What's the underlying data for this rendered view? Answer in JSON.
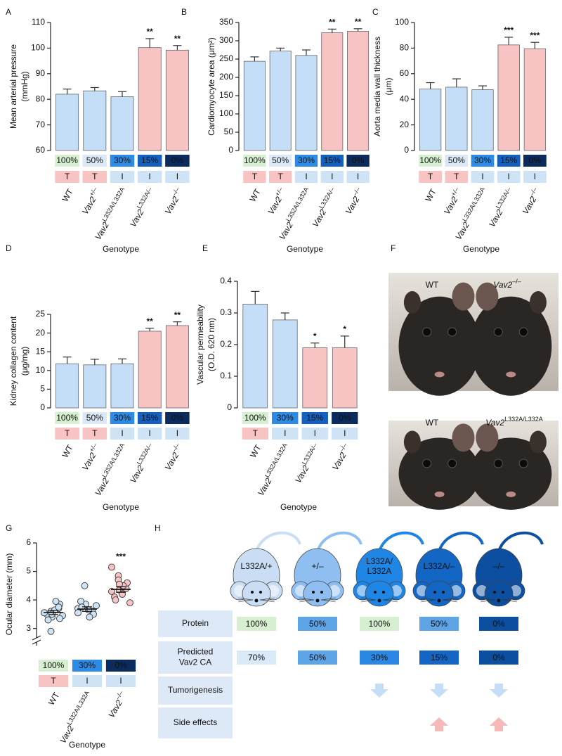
{
  "chart_data": [
    {
      "panel": "A",
      "type": "bar",
      "ylabel": [
        "Mean arterial pressure",
        "(mmHg)"
      ],
      "xlabel": "Genotype",
      "categories": [
        "WT",
        "Vav2+/–",
        "Vav2L332A/L332A",
        "Vav2L332A/–",
        "Vav2–/–"
      ],
      "values": [
        82,
        83.3,
        81,
        100.2,
        99.2
      ],
      "errors": [
        2,
        1.3,
        2,
        3.5,
        1.8
      ],
      "colors": [
        "#c5def7",
        "#c5def7",
        "#c5def7",
        "#f7c3c3",
        "#f7c3c3"
      ],
      "significance": [
        null,
        null,
        null,
        "**",
        "**"
      ],
      "ca_labels": [
        "100%",
        "50%",
        "30%",
        "15%",
        "0%"
      ],
      "ca_colors": [
        "#d6efd0",
        "#dbe9f7",
        "#2d8be6",
        "#155fbf",
        "#0b2b5c"
      ],
      "ti_labels": [
        "T",
        "T",
        "I",
        "I",
        "I"
      ],
      "ti_colors": [
        "#f7c3c3",
        "#f7c3c3",
        "#cfe3f7",
        "#cfe3f7",
        "#cfe3f7"
      ],
      "ylim": [
        60,
        110
      ],
      "yticks": [
        60,
        70,
        80,
        90,
        100,
        110
      ]
    },
    {
      "panel": "B",
      "type": "bar",
      "ylabel": [
        "Cardiomyocyte area (μm²)"
      ],
      "xlabel": "Genotype",
      "categories": [
        "WT",
        "Vav2+/–",
        "Vav2L332A/L332A",
        "Vav2L332A/–",
        "Vav2–/–"
      ],
      "values": [
        244,
        272,
        260,
        322,
        326
      ],
      "errors": [
        12,
        8,
        15,
        10,
        7
      ],
      "colors": [
        "#c5def7",
        "#c5def7",
        "#c5def7",
        "#f7c3c3",
        "#f7c3c3"
      ],
      "significance": [
        null,
        null,
        null,
        "**",
        "**"
      ],
      "ca_labels": [
        "100%",
        "50%",
        "30%",
        "15%",
        "0%"
      ],
      "ca_colors": [
        "#d6efd0",
        "#dbe9f7",
        "#2d8be6",
        "#155fbf",
        "#0b2b5c"
      ],
      "ti_labels": [
        "T",
        "T",
        "I",
        "I",
        "I"
      ],
      "ti_colors": [
        "#f7c3c3",
        "#f7c3c3",
        "#cfe3f7",
        "#cfe3f7",
        "#cfe3f7"
      ],
      "ylim": [
        0,
        350
      ],
      "yticks": [
        0,
        50,
        100,
        150,
        200,
        250,
        300,
        350
      ]
    },
    {
      "panel": "C",
      "type": "bar",
      "ylabel": [
        "Aorta media wall thickness",
        "(μm)"
      ],
      "xlabel": "Genotype",
      "categories": [
        "WT",
        "Vav2+/–",
        "Vav2L332A/L332A",
        "Vav2L332A/–",
        "Vav2–/–"
      ],
      "values": [
        48,
        49.5,
        47.5,
        82.5,
        79.5
      ],
      "errors": [
        5,
        6.5,
        3,
        6,
        5
      ],
      "colors": [
        "#c5def7",
        "#c5def7",
        "#c5def7",
        "#f7c3c3",
        "#f7c3c3"
      ],
      "significance": [
        null,
        null,
        null,
        "***",
        "***"
      ],
      "ca_labels": [
        "100%",
        "50%",
        "30%",
        "15%",
        "0%"
      ],
      "ca_colors": [
        "#d6efd0",
        "#dbe9f7",
        "#2d8be6",
        "#155fbf",
        "#0b2b5c"
      ],
      "ti_labels": [
        "T",
        "T",
        "I",
        "I",
        "I"
      ],
      "ti_colors": [
        "#f7c3c3",
        "#f7c3c3",
        "#cfe3f7",
        "#cfe3f7",
        "#cfe3f7"
      ],
      "ylim": [
        0,
        100
      ],
      "yticks": [
        0,
        20,
        40,
        60,
        80,
        100
      ]
    },
    {
      "panel": "D",
      "type": "bar",
      "ylabel": [
        "Kidney collagen content",
        "(μg/mg)"
      ],
      "xlabel": "Genotype",
      "categories": [
        "WT",
        "Vav2+/–",
        "Vav2L332A/L332A",
        "Vav2L332A/–",
        "Vav2–/–"
      ],
      "values": [
        11.8,
        11.5,
        11.8,
        20.5,
        22
      ],
      "errors": [
        1.8,
        1.5,
        1.3,
        0.8,
        1.0
      ],
      "colors": [
        "#c5def7",
        "#c5def7",
        "#c5def7",
        "#f7c3c3",
        "#f7c3c3"
      ],
      "significance": [
        null,
        null,
        null,
        "**",
        "**"
      ],
      "ca_labels": [
        "100%",
        "50%",
        "30%",
        "15%",
        "0%"
      ],
      "ca_colors": [
        "#d6efd0",
        "#dbe9f7",
        "#2d8be6",
        "#155fbf",
        "#0b2b5c"
      ],
      "ti_labels": [
        "T",
        "T",
        "I",
        "I",
        "I"
      ],
      "ti_colors": [
        "#f7c3c3",
        "#f7c3c3",
        "#cfe3f7",
        "#cfe3f7",
        "#cfe3f7"
      ],
      "ylim": [
        0,
        25
      ],
      "yticks": [
        0,
        5,
        10,
        15,
        20,
        25
      ]
    },
    {
      "panel": "E",
      "type": "bar",
      "ylabel": [
        "Vascular permeability",
        "(O.D. 620 nm)"
      ],
      "xlabel": "Genotype",
      "categories": [
        "WT",
        "Vav2L332A/L332A",
        "Vav2L332A/–",
        "Vav2–/–"
      ],
      "values": [
        0.328,
        0.278,
        0.19,
        0.19
      ],
      "errors": [
        0.04,
        0.022,
        0.015,
        0.037
      ],
      "colors": [
        "#c5def7",
        "#c5def7",
        "#f7c3c3",
        "#f7c3c3"
      ],
      "significance": [
        null,
        null,
        "*",
        "*"
      ],
      "ca_labels": [
        "100%",
        "30%",
        "15%",
        "0%"
      ],
      "ca_colors": [
        "#d6efd0",
        "#2d8be6",
        "#155fbf",
        "#0b2b5c"
      ],
      "ti_labels": [
        "T",
        "I",
        "I",
        "I"
      ],
      "ti_colors": [
        "#f7c3c3",
        "#cfe3f7",
        "#cfe3f7",
        "#cfe3f7"
      ],
      "ylim": [
        0,
        0.4
      ],
      "yticks": [
        0,
        0.1,
        0.2,
        0.3,
        0.4
      ]
    },
    {
      "panel": "G",
      "type": "dot",
      "ylabel": [
        "Ocular diameter (mm)"
      ],
      "xlabel": "Genotype",
      "categories": [
        "WT",
        "Vav2L332A/L332A",
        "Vav2–/–"
      ],
      "values": [
        [
          3.55,
          3.6,
          3.4,
          3.7,
          3.85,
          3.5,
          3.3,
          3.65,
          3.95,
          3.45,
          3.55,
          2.9,
          3.5,
          3.75,
          3.35
        ],
        [
          3.7,
          4.5,
          3.85,
          3.6,
          3.5,
          3.95,
          3.75,
          3.65,
          3.4,
          3.8,
          3.55
        ],
        [
          5.15,
          4.85,
          4.35,
          4.4,
          4.6,
          4.1,
          4.0,
          4.2,
          4.5,
          3.9,
          4.3,
          4.7,
          4.55
        ]
      ],
      "means": [
        3.56,
        3.68,
        4.37
      ],
      "errors": [
        0.07,
        0.08,
        0.1
      ],
      "colors": [
        "#cfe3f7",
        "#cfe3f7",
        "#f7c3c3"
      ],
      "significance": [
        null,
        null,
        "***"
      ],
      "ca_labels": [
        "100%",
        "30%",
        "0%"
      ],
      "ca_colors": [
        "#d6efd0",
        "#2d8be6",
        "#0b2b5c"
      ],
      "ti_labels": [
        "T",
        "I",
        "I"
      ],
      "ti_colors": [
        "#f7c3c3",
        "#cfe3f7",
        "#cfe3f7"
      ],
      "ylim": [
        2.4,
        6
      ],
      "yticks": [
        3,
        4,
        5,
        6
      ]
    }
  ],
  "photos": {
    "panel": "F",
    "labels": [
      "WT",
      "Vav2–/–",
      "WT",
      "Vav2L332A/L332A"
    ]
  },
  "diagram": {
    "panel": "H",
    "genotypes": [
      [
        "L332A/+"
      ],
      [
        "+/–"
      ],
      [
        "L332A/",
        "L332A"
      ],
      [
        "L332A/–"
      ],
      [
        "–/–"
      ]
    ],
    "colors": [
      "#c9def4",
      "#8fbff0",
      "#1f86e6",
      "#1466c4",
      "#0c4fa0"
    ],
    "rows": [
      {
        "label": [
          "Protein"
        ],
        "values": [
          "100%",
          "50%",
          "100%",
          "50%",
          "0%"
        ],
        "colors": [
          "#d6efd0",
          "#5ea5e8",
          "#d6efd0",
          "#5ea5e8",
          "#0c4fa0"
        ]
      },
      {
        "label": [
          "Predicted",
          "Vav2 CA"
        ],
        "values": [
          "70%",
          "50%",
          "30%",
          "15%",
          "0%"
        ],
        "colors": [
          "#d9e9f7",
          "#5ea5e8",
          "#2a87e3",
          "#1465c4",
          "#0c4fa0"
        ]
      },
      {
        "label": [
          "Tumorigenesis"
        ]
      },
      {
        "label": [
          "Side effects"
        ]
      }
    ]
  }
}
